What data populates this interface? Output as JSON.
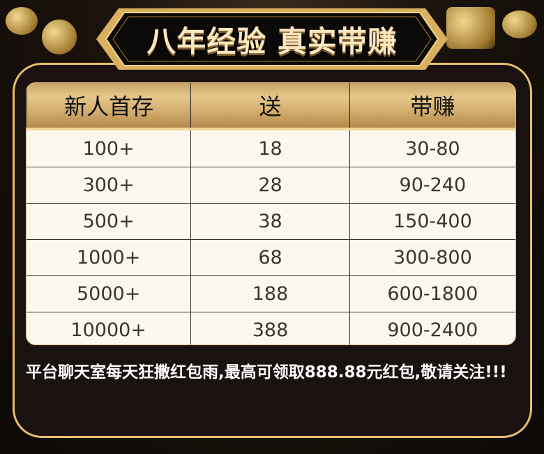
{
  "banner": {
    "title": "八年经验 真实带赚"
  },
  "table": {
    "headers": [
      "新人首存",
      "送",
      "带赚"
    ],
    "rows": [
      [
        "100+",
        "18",
        "30-80"
      ],
      [
        "300+",
        "28",
        "90-240"
      ],
      [
        "500+",
        "38",
        "150-400"
      ],
      [
        "1000+",
        "68",
        "300-800"
      ],
      [
        "5000+",
        "188",
        "600-1800"
      ],
      [
        "10000+",
        "388",
        "900-2400"
      ]
    ]
  },
  "note": "平台聊天室每天狂撒红包雨,最高可领取888.88元红包,敬请关注!!!",
  "colors": {
    "gold": "#e6be6c",
    "background": "#1a1210",
    "table_bg": "#fdf8ee"
  }
}
